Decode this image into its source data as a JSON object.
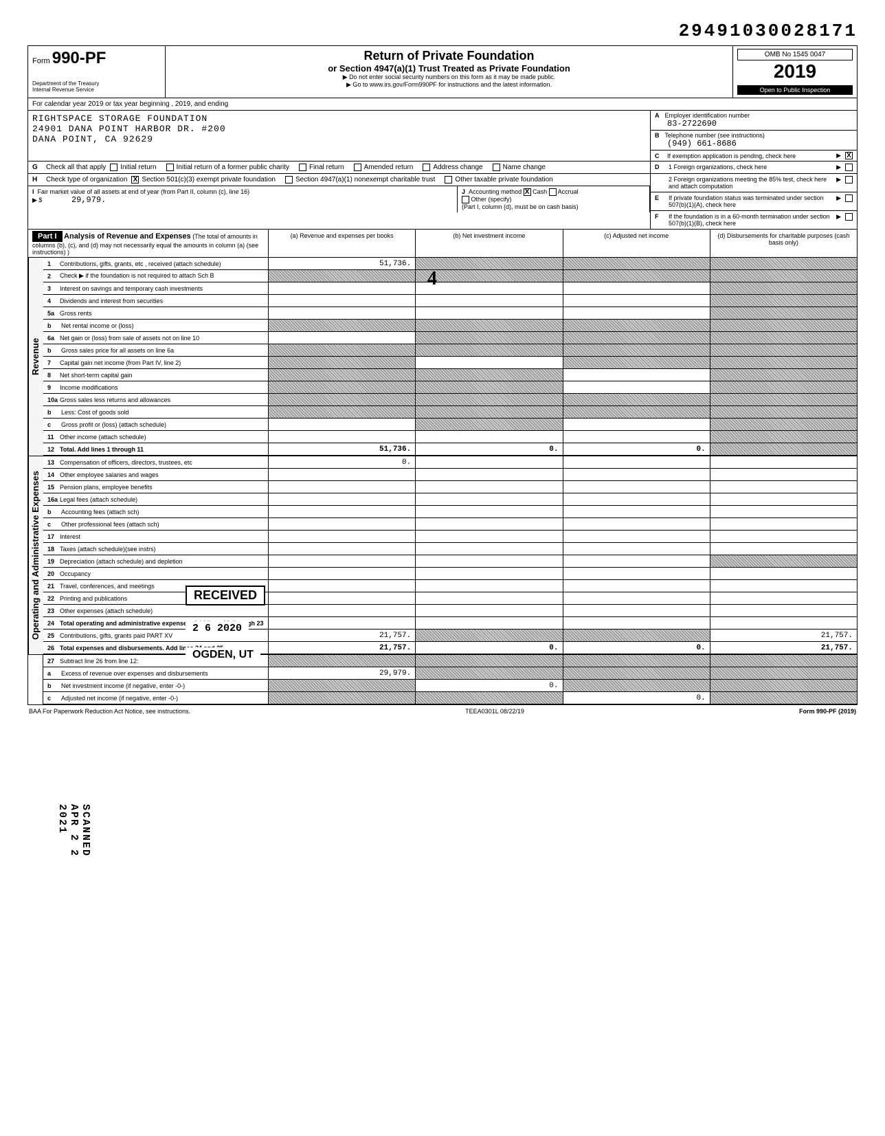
{
  "dln": "29491030028171",
  "omb": "OMB No 1545 0047",
  "form": {
    "prefix": "Form",
    "number": "990-PF"
  },
  "dept": "Department of the Treasury\nInternal Revenue Service",
  "title": "Return of Private Foundation",
  "subtitle": "or Section 4947(a)(1) Trust Treated as Private Foundation",
  "note1": "▶ Do not enter social security numbers on this form as it may be made public.",
  "note2": "▶ Go to www.irs.gov/Form990PF for instructions and the latest information.",
  "year": "2019",
  "public_inspection": "Open to Public Inspection",
  "cal_line": "For calendar year 2019 or tax year beginning , 2019, and ending",
  "org": {
    "name": "RIGHTSPACE STORAGE FOUNDATION",
    "addr1": "24901 DANA POINT HARBOR DR. #200",
    "addr2": "DANA POINT, CA 92629"
  },
  "A": {
    "label": "Employer identification number",
    "value": "83-2722690"
  },
  "B": {
    "label": "Telephone number (see instructions)",
    "value": "(949) 661-8686"
  },
  "C": {
    "label": "If exemption application is pending, check here",
    "checked": "X"
  },
  "G": {
    "label": "Check all that apply",
    "opts": [
      "Initial return",
      "Initial return of a former public charity",
      "Final return",
      "Amended return",
      "Address change",
      "Name change"
    ]
  },
  "H": {
    "label": "Check type of organization",
    "opts": [
      {
        "t": "Section 501(c)(3) exempt private foundation",
        "c": "X"
      },
      {
        "t": "Section 4947(a)(1) nonexempt charitable trust",
        "c": ""
      },
      {
        "t": "Other taxable private foundation",
        "c": ""
      }
    ]
  },
  "D": {
    "d1": "1 Foreign organizations, check here",
    "d2": "2 Foreign organizations meeting the 85% test, check here and attach computation"
  },
  "E": "If private foundation status was terminated under section 507(b)(1)(A), check here",
  "F": "If the foundation is in a 60-month termination under section 507(b)(1)(B), check here",
  "I": {
    "label": "Fair market value of all assets at end of year (from Part II, column (c), line 16)",
    "value": "29,979."
  },
  "J": {
    "label": "Accounting method",
    "cash": "X",
    "accrual": "",
    "other": "Other (specify)",
    "note": "(Part I, column (d), must be on cash basis)"
  },
  "part1": {
    "title": "Part I",
    "heading": "Analysis of Revenue and Expenses",
    "heading_note": "(The total of amounts in columns (b), (c), and (d) may not necessarily equal the amounts in column (a) (see instructions) )",
    "cols": [
      "(a) Revenue and expenses per books",
      "(b) Net investment income",
      "(c) Adjusted net income",
      "(d) Disbursements for charitable purposes (cash basis only)"
    ]
  },
  "revenue_rows": [
    {
      "n": "1",
      "t": "Contributions, gifts, grants, etc , received (attach schedule)",
      "a": "51,736.",
      "b": "sh",
      "c": "sh",
      "d": "sh"
    },
    {
      "n": "2",
      "t": "Check ▶  if the foundation is not required to attach Sch B",
      "a": "sh",
      "b": "sh",
      "c": "sh",
      "d": "sh"
    },
    {
      "n": "3",
      "t": "Interest on savings and temporary cash investments",
      "a": "",
      "b": "",
      "c": "",
      "d": "sh"
    },
    {
      "n": "4",
      "t": "Dividends and interest from securities",
      "a": "",
      "b": "",
      "c": "",
      "d": "sh"
    },
    {
      "n": "5a",
      "t": "Gross rents",
      "a": "",
      "b": "",
      "c": "",
      "d": "sh"
    },
    {
      "n": "b",
      "t": "Net rental income or (loss)",
      "a": "sh",
      "b": "sh",
      "c": "sh",
      "d": "sh",
      "sub": true
    },
    {
      "n": "6a",
      "t": "Net gain or (loss) from sale of assets not on line 10",
      "a": "",
      "b": "sh",
      "c": "sh",
      "d": "sh"
    },
    {
      "n": "b",
      "t": "Gross sales price for all assets on line 6a",
      "a": "sh",
      "b": "sh",
      "c": "sh",
      "d": "sh",
      "sub": true
    },
    {
      "n": "7",
      "t": "Capital gain net income (from Part IV, line 2)",
      "a": "sh",
      "b": "",
      "c": "sh",
      "d": "sh"
    },
    {
      "n": "8",
      "t": "Net short-term capital gain",
      "a": "sh",
      "b": "sh",
      "c": "",
      "d": "sh"
    },
    {
      "n": "9",
      "t": "Income modifications",
      "a": "sh",
      "b": "sh",
      "c": "",
      "d": "sh"
    },
    {
      "n": "10a",
      "t": "Gross sales less returns and allowances",
      "a": "sh",
      "b": "sh",
      "c": "sh",
      "d": "sh"
    },
    {
      "n": "b",
      "t": "Less: Cost of goods sold",
      "a": "sh",
      "b": "sh",
      "c": "sh",
      "d": "sh",
      "sub": true
    },
    {
      "n": "c",
      "t": "Gross profit or (loss) (attach schedule)",
      "a": "",
      "b": "sh",
      "c": "",
      "d": "sh",
      "sub": true
    },
    {
      "n": "11",
      "t": "Other income (attach schedule)",
      "a": "",
      "b": "",
      "c": "",
      "d": "sh"
    },
    {
      "n": "12",
      "t": "Total. Add lines 1 through 11",
      "a": "51,736.",
      "b": "0.",
      "c": "0.",
      "d": "sh",
      "tot": true
    }
  ],
  "expense_rows": [
    {
      "n": "13",
      "t": "Compensation of officers, directors, trustees, etc",
      "a": "0.",
      "b": "",
      "c": "",
      "d": ""
    },
    {
      "n": "14",
      "t": "Other employee salaries and wages",
      "a": "",
      "b": "",
      "c": "",
      "d": ""
    },
    {
      "n": "15",
      "t": "Pension plans, employee benefits",
      "a": "",
      "b": "",
      "c": "",
      "d": ""
    },
    {
      "n": "16a",
      "t": "Legal fees (attach schedule)",
      "a": "",
      "b": "",
      "c": "",
      "d": ""
    },
    {
      "n": "b",
      "t": "Accounting fees (attach sch)",
      "a": "",
      "b": "",
      "c": "",
      "d": "",
      "sub": true
    },
    {
      "n": "c",
      "t": "Other professional fees (attach sch)",
      "a": "",
      "b": "",
      "c": "",
      "d": "",
      "sub": true
    },
    {
      "n": "17",
      "t": "Interest",
      "a": "",
      "b": "",
      "c": "",
      "d": ""
    },
    {
      "n": "18",
      "t": "Taxes (attach schedule)(see instrs)",
      "a": "",
      "b": "",
      "c": "",
      "d": ""
    },
    {
      "n": "19",
      "t": "Depreciation (attach schedule) and depletion",
      "a": "",
      "b": "",
      "c": "",
      "d": "sh"
    },
    {
      "n": "20",
      "t": "Occupancy",
      "a": "",
      "b": "",
      "c": "",
      "d": ""
    },
    {
      "n": "21",
      "t": "Travel, conferences, and meetings",
      "a": "",
      "b": "",
      "c": "",
      "d": ""
    },
    {
      "n": "22",
      "t": "Printing and publications",
      "a": "",
      "b": "",
      "c": "",
      "d": ""
    },
    {
      "n": "23",
      "t": "Other expenses (attach schedule)",
      "a": "",
      "b": "",
      "c": "",
      "d": ""
    },
    {
      "n": "24",
      "t": "Total operating and administrative expenses. Add lines 13 through 23",
      "a": "",
      "b": "",
      "c": "",
      "d": "",
      "tot": true
    },
    {
      "n": "25",
      "t": "Contributions, gifts, grants paid        PART XV",
      "a": "21,757.",
      "b": "sh",
      "c": "sh",
      "d": "21,757."
    },
    {
      "n": "26",
      "t": "Total expenses and disbursements. Add lines 24 and 25",
      "a": "21,757.",
      "b": "0.",
      "c": "0.",
      "d": "21,757.",
      "tot": true
    }
  ],
  "line27_rows": [
    {
      "n": "27",
      "t": "Subtract line 26 from line 12:",
      "a": "sh",
      "b": "sh",
      "c": "sh",
      "d": "sh"
    },
    {
      "n": "a",
      "t": "Excess of revenue over expenses and disbursements",
      "a": "29,979.",
      "b": "sh",
      "c": "sh",
      "d": "sh",
      "sub": true
    },
    {
      "n": "b",
      "t": "Net investment income (if negative, enter -0-)",
      "a": "sh",
      "b": "0.",
      "c": "sh",
      "d": "sh",
      "sub": true
    },
    {
      "n": "c",
      "t": "Adjusted net income (if negative, enter -0-)",
      "a": "sh",
      "b": "sh",
      "c": "0.",
      "d": "sh",
      "sub": true
    }
  ],
  "side_labels": {
    "rev": "Revenue",
    "exp": "Operating and Administrative Expenses"
  },
  "stamps": {
    "received": "RECEIVED",
    "date": "2 6 2020",
    "ogden": "OGDEN, UT",
    "scanned": "SCANNED APR 2 2 2021"
  },
  "footer": {
    "left": "BAA  For Paperwork Reduction Act Notice, see instructions.",
    "mid": "TEEA0301L  08/22/19",
    "right": "Form 990-PF (2019)"
  },
  "hand4": "4"
}
